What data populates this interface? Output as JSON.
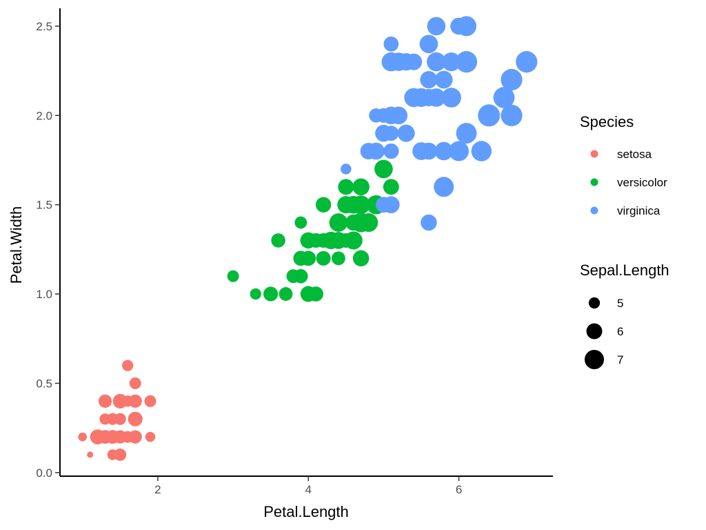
{
  "chart_data": {
    "type": "scatter",
    "title": "",
    "xlabel": "Petal.Length",
    "ylabel": "Petal.Width",
    "xlim": [
      0.7,
      7.25
    ],
    "ylim": [
      -0.02,
      2.6
    ],
    "x_ticks": [
      2,
      4,
      6
    ],
    "x_tick_labels": [
      "2",
      "4",
      "6"
    ],
    "y_ticks": [
      0.0,
      0.5,
      1.0,
      1.5,
      2.0,
      2.5
    ],
    "y_tick_labels": [
      "0.0",
      "0.5",
      "1.0",
      "1.5",
      "2.0",
      "2.5"
    ],
    "grid": false,
    "legend": {
      "placement": "right",
      "color_title": "Species",
      "size_title": "Sepal.Length",
      "size_entries": [
        {
          "label": "5",
          "value": 5
        },
        {
          "label": "6",
          "value": 6
        },
        {
          "label": "7",
          "value": 7
        }
      ]
    },
    "size_mapping": {
      "variable": "Sepal.Length",
      "range": [
        4.3,
        7.9
      ]
    },
    "series": [
      {
        "name": "setosa",
        "color": "#F8766D",
        "points": [
          [
            1.4,
            0.2,
            5.1
          ],
          [
            1.4,
            0.2,
            4.9
          ],
          [
            1.3,
            0.2,
            4.7
          ],
          [
            1.5,
            0.2,
            4.6
          ],
          [
            1.4,
            0.2,
            5.0
          ],
          [
            1.7,
            0.4,
            5.4
          ],
          [
            1.4,
            0.3,
            4.6
          ],
          [
            1.5,
            0.2,
            5.0
          ],
          [
            1.4,
            0.2,
            4.4
          ],
          [
            1.5,
            0.1,
            4.9
          ],
          [
            1.5,
            0.2,
            5.4
          ],
          [
            1.6,
            0.2,
            4.8
          ],
          [
            1.4,
            0.1,
            4.8
          ],
          [
            1.1,
            0.1,
            4.3
          ],
          [
            1.2,
            0.2,
            5.8
          ],
          [
            1.5,
            0.4,
            5.7
          ],
          [
            1.3,
            0.4,
            5.4
          ],
          [
            1.4,
            0.3,
            5.1
          ],
          [
            1.7,
            0.3,
            5.7
          ],
          [
            1.5,
            0.3,
            5.1
          ],
          [
            1.7,
            0.2,
            5.4
          ],
          [
            1.5,
            0.4,
            5.1
          ],
          [
            1.0,
            0.2,
            4.6
          ],
          [
            1.7,
            0.5,
            5.1
          ],
          [
            1.9,
            0.2,
            4.8
          ],
          [
            1.6,
            0.2,
            5.0
          ],
          [
            1.6,
            0.4,
            5.0
          ],
          [
            1.5,
            0.2,
            5.2
          ],
          [
            1.4,
            0.2,
            5.2
          ],
          [
            1.6,
            0.2,
            4.7
          ],
          [
            1.6,
            0.2,
            4.8
          ],
          [
            1.5,
            0.4,
            5.4
          ],
          [
            1.5,
            0.1,
            5.2
          ],
          [
            1.4,
            0.2,
            5.5
          ],
          [
            1.5,
            0.2,
            4.9
          ],
          [
            1.2,
            0.2,
            5.0
          ],
          [
            1.3,
            0.2,
            5.5
          ],
          [
            1.4,
            0.1,
            4.9
          ],
          [
            1.3,
            0.2,
            4.4
          ],
          [
            1.5,
            0.2,
            5.1
          ],
          [
            1.3,
            0.3,
            5.0
          ],
          [
            1.3,
            0.3,
            4.5
          ],
          [
            1.3,
            0.2,
            4.4
          ],
          [
            1.6,
            0.6,
            5.0
          ],
          [
            1.9,
            0.4,
            5.1
          ],
          [
            1.4,
            0.3,
            4.8
          ],
          [
            1.6,
            0.2,
            5.1
          ],
          [
            1.4,
            0.2,
            4.6
          ],
          [
            1.5,
            0.2,
            5.3
          ],
          [
            1.4,
            0.2,
            5.0
          ]
        ]
      },
      {
        "name": "versicolor",
        "color": "#00BA38",
        "points": [
          [
            4.7,
            1.4,
            7.0
          ],
          [
            4.5,
            1.5,
            6.4
          ],
          [
            4.9,
            1.5,
            6.9
          ],
          [
            4.0,
            1.3,
            5.5
          ],
          [
            4.6,
            1.5,
            6.5
          ],
          [
            4.5,
            1.3,
            5.7
          ],
          [
            4.7,
            1.6,
            6.3
          ],
          [
            3.3,
            1.0,
            4.9
          ],
          [
            4.6,
            1.3,
            6.6
          ],
          [
            3.9,
            1.4,
            5.2
          ],
          [
            3.5,
            1.0,
            5.0
          ],
          [
            4.2,
            1.5,
            5.9
          ],
          [
            4.0,
            1.0,
            6.0
          ],
          [
            4.7,
            1.4,
            6.1
          ],
          [
            3.6,
            1.3,
            5.6
          ],
          [
            4.4,
            1.4,
            6.7
          ],
          [
            4.5,
            1.5,
            5.6
          ],
          [
            4.1,
            1.0,
            5.8
          ],
          [
            4.5,
            1.5,
            6.2
          ],
          [
            3.9,
            1.1,
            5.6
          ],
          [
            4.8,
            1.8,
            5.9
          ],
          [
            4.0,
            1.3,
            6.1
          ],
          [
            4.9,
            1.5,
            6.3
          ],
          [
            4.7,
            1.2,
            6.1
          ],
          [
            4.3,
            1.3,
            6.4
          ],
          [
            4.4,
            1.4,
            6.6
          ],
          [
            4.8,
            1.4,
            6.8
          ],
          [
            5.0,
            1.7,
            6.7
          ],
          [
            4.5,
            1.5,
            6.0
          ],
          [
            3.5,
            1.0,
            5.7
          ],
          [
            3.8,
            1.1,
            5.5
          ],
          [
            3.7,
            1.0,
            5.5
          ],
          [
            3.9,
            1.2,
            5.8
          ],
          [
            5.1,
            1.6,
            6.0
          ],
          [
            4.5,
            1.5,
            5.4
          ],
          [
            4.5,
            1.6,
            6.0
          ],
          [
            4.7,
            1.5,
            6.7
          ],
          [
            4.4,
            1.3,
            6.3
          ],
          [
            4.1,
            1.3,
            5.6
          ],
          [
            4.0,
            1.3,
            5.5
          ],
          [
            4.4,
            1.2,
            5.5
          ],
          [
            4.6,
            1.4,
            6.1
          ],
          [
            4.0,
            1.2,
            5.8
          ],
          [
            3.3,
            1.0,
            5.0
          ],
          [
            4.2,
            1.3,
            5.6
          ],
          [
            4.2,
            1.2,
            5.7
          ],
          [
            4.2,
            1.3,
            5.7
          ],
          [
            4.3,
            1.3,
            6.2
          ],
          [
            3.0,
            1.1,
            5.1
          ],
          [
            4.1,
            1.3,
            5.7
          ]
        ]
      },
      {
        "name": "virginica",
        "color": "#619CFF",
        "points": [
          [
            6.0,
            2.5,
            6.3
          ],
          [
            5.1,
            1.9,
            5.8
          ],
          [
            5.9,
            2.1,
            7.1
          ],
          [
            5.6,
            1.8,
            6.3
          ],
          [
            5.8,
            2.2,
            6.5
          ],
          [
            6.6,
            2.1,
            7.6
          ],
          [
            4.5,
            1.7,
            4.9
          ],
          [
            6.3,
            1.8,
            7.3
          ],
          [
            5.8,
            1.8,
            6.7
          ],
          [
            6.1,
            2.5,
            7.2
          ],
          [
            5.1,
            2.0,
            6.5
          ],
          [
            5.3,
            1.9,
            6.4
          ],
          [
            5.5,
            2.1,
            6.8
          ],
          [
            5.0,
            2.0,
            5.7
          ],
          [
            5.1,
            2.4,
            5.8
          ],
          [
            5.3,
            2.3,
            6.4
          ],
          [
            5.5,
            1.8,
            6.5
          ],
          [
            6.7,
            2.2,
            7.7
          ],
          [
            6.9,
            2.3,
            7.7
          ],
          [
            5.0,
            1.5,
            6.0
          ],
          [
            5.7,
            2.3,
            6.9
          ],
          [
            4.9,
            2.0,
            5.6
          ],
          [
            6.7,
            2.0,
            7.7
          ],
          [
            4.9,
            1.8,
            6.3
          ],
          [
            5.7,
            2.1,
            6.7
          ],
          [
            6.0,
            1.8,
            7.2
          ],
          [
            4.8,
            1.8,
            6.2
          ],
          [
            4.9,
            1.8,
            6.1
          ],
          [
            5.6,
            2.1,
            6.4
          ],
          [
            5.8,
            1.6,
            7.2
          ],
          [
            6.1,
            1.9,
            7.4
          ],
          [
            6.4,
            2.0,
            7.9
          ],
          [
            5.6,
            2.2,
            6.4
          ],
          [
            5.1,
            1.5,
            6.3
          ],
          [
            5.6,
            1.4,
            6.1
          ],
          [
            6.1,
            2.3,
            7.7
          ],
          [
            5.6,
            2.4,
            6.3
          ],
          [
            5.5,
            1.8,
            6.4
          ],
          [
            4.8,
            1.8,
            6.0
          ],
          [
            5.4,
            2.1,
            6.9
          ],
          [
            5.6,
            2.4,
            6.7
          ],
          [
            5.1,
            2.3,
            6.9
          ],
          [
            5.1,
            1.9,
            5.8
          ],
          [
            5.9,
            2.3,
            6.8
          ],
          [
            5.7,
            2.5,
            6.7
          ],
          [
            5.2,
            2.3,
            6.7
          ],
          [
            5.0,
            1.9,
            6.3
          ],
          [
            5.2,
            2.0,
            6.5
          ],
          [
            5.4,
            2.3,
            6.2
          ],
          [
            5.1,
            1.8,
            5.9
          ]
        ]
      }
    ]
  }
}
